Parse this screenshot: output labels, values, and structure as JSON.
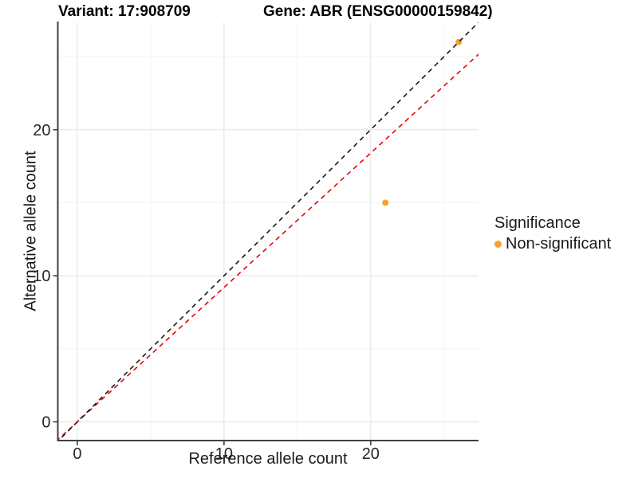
{
  "figure": {
    "title_left": "Variant: 17:908709",
    "title_right": "Gene: ABR (ENSG00000159842)"
  },
  "chart_data": {
    "type": "scatter",
    "title_left": "Variant: 17:908709",
    "title_right": "Gene: ABR (ENSG00000159842)",
    "xlabel": "Reference allele count",
    "ylabel": "Alternative allele count",
    "xlim": [
      -1.33,
      27.35
    ],
    "ylim": [
      -1.28,
      27.35
    ],
    "x_ticks": [
      0,
      10,
      20
    ],
    "y_ticks": [
      0,
      10,
      20
    ],
    "x_minor_ticks": [
      5,
      15,
      25
    ],
    "y_minor_ticks": [
      5,
      15,
      25
    ],
    "grid": true,
    "points": [
      {
        "x": 21,
        "y": 15,
        "series": "Non-significant"
      },
      {
        "x": 26,
        "y": 26,
        "series": "Non-significant"
      }
    ],
    "lines": [
      {
        "name": "expected-ratio-line",
        "slope": 0.92,
        "intercept": 0,
        "color": "#ee0000",
        "dash": "6,5"
      },
      {
        "name": "identity-line",
        "slope": 1,
        "intercept": 0,
        "color": "#1a1a1a",
        "dash": "6,5"
      }
    ],
    "legend": {
      "position": "right",
      "title": "Significance",
      "items": [
        {
          "label": "Non-significant",
          "color": "#F9A32C"
        }
      ]
    },
    "colors": {
      "point": "#F9A32C",
      "axis_line": "#404040",
      "tick_label": "#262626",
      "grid_major": "#e7e7e7",
      "grid_minor": "#f2f2f2"
    }
  }
}
